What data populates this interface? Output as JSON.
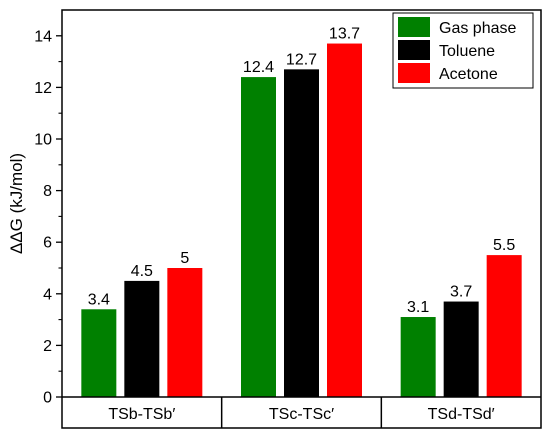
{
  "chart_data": {
    "type": "bar",
    "title": "",
    "xlabel": "",
    "ylabel": "ΔΔG (kJ/mol)",
    "ylim": [
      0,
      15
    ],
    "yticks": [
      0,
      2,
      4,
      6,
      8,
      10,
      12,
      14
    ],
    "categories": [
      "TSb-TSb′",
      "TSc-TSc′",
      "TSd-TSd′"
    ],
    "series": [
      {
        "name": "Gas phase",
        "color": "#008000",
        "values": [
          3.4,
          12.4,
          3.1
        ],
        "labels": [
          "3.4",
          "12.4",
          "3.1"
        ]
      },
      {
        "name": "Toluene",
        "color": "#000000",
        "values": [
          4.5,
          12.7,
          3.7
        ],
        "labels": [
          "4.5",
          "12.7",
          "3.7"
        ]
      },
      {
        "name": "Acetone",
        "color": "#ff0000",
        "values": [
          5,
          13.7,
          5.5
        ],
        "labels": [
          "5",
          "13.7",
          "5.5"
        ]
      }
    ],
    "legend_position": "top-right",
    "grid": false
  }
}
